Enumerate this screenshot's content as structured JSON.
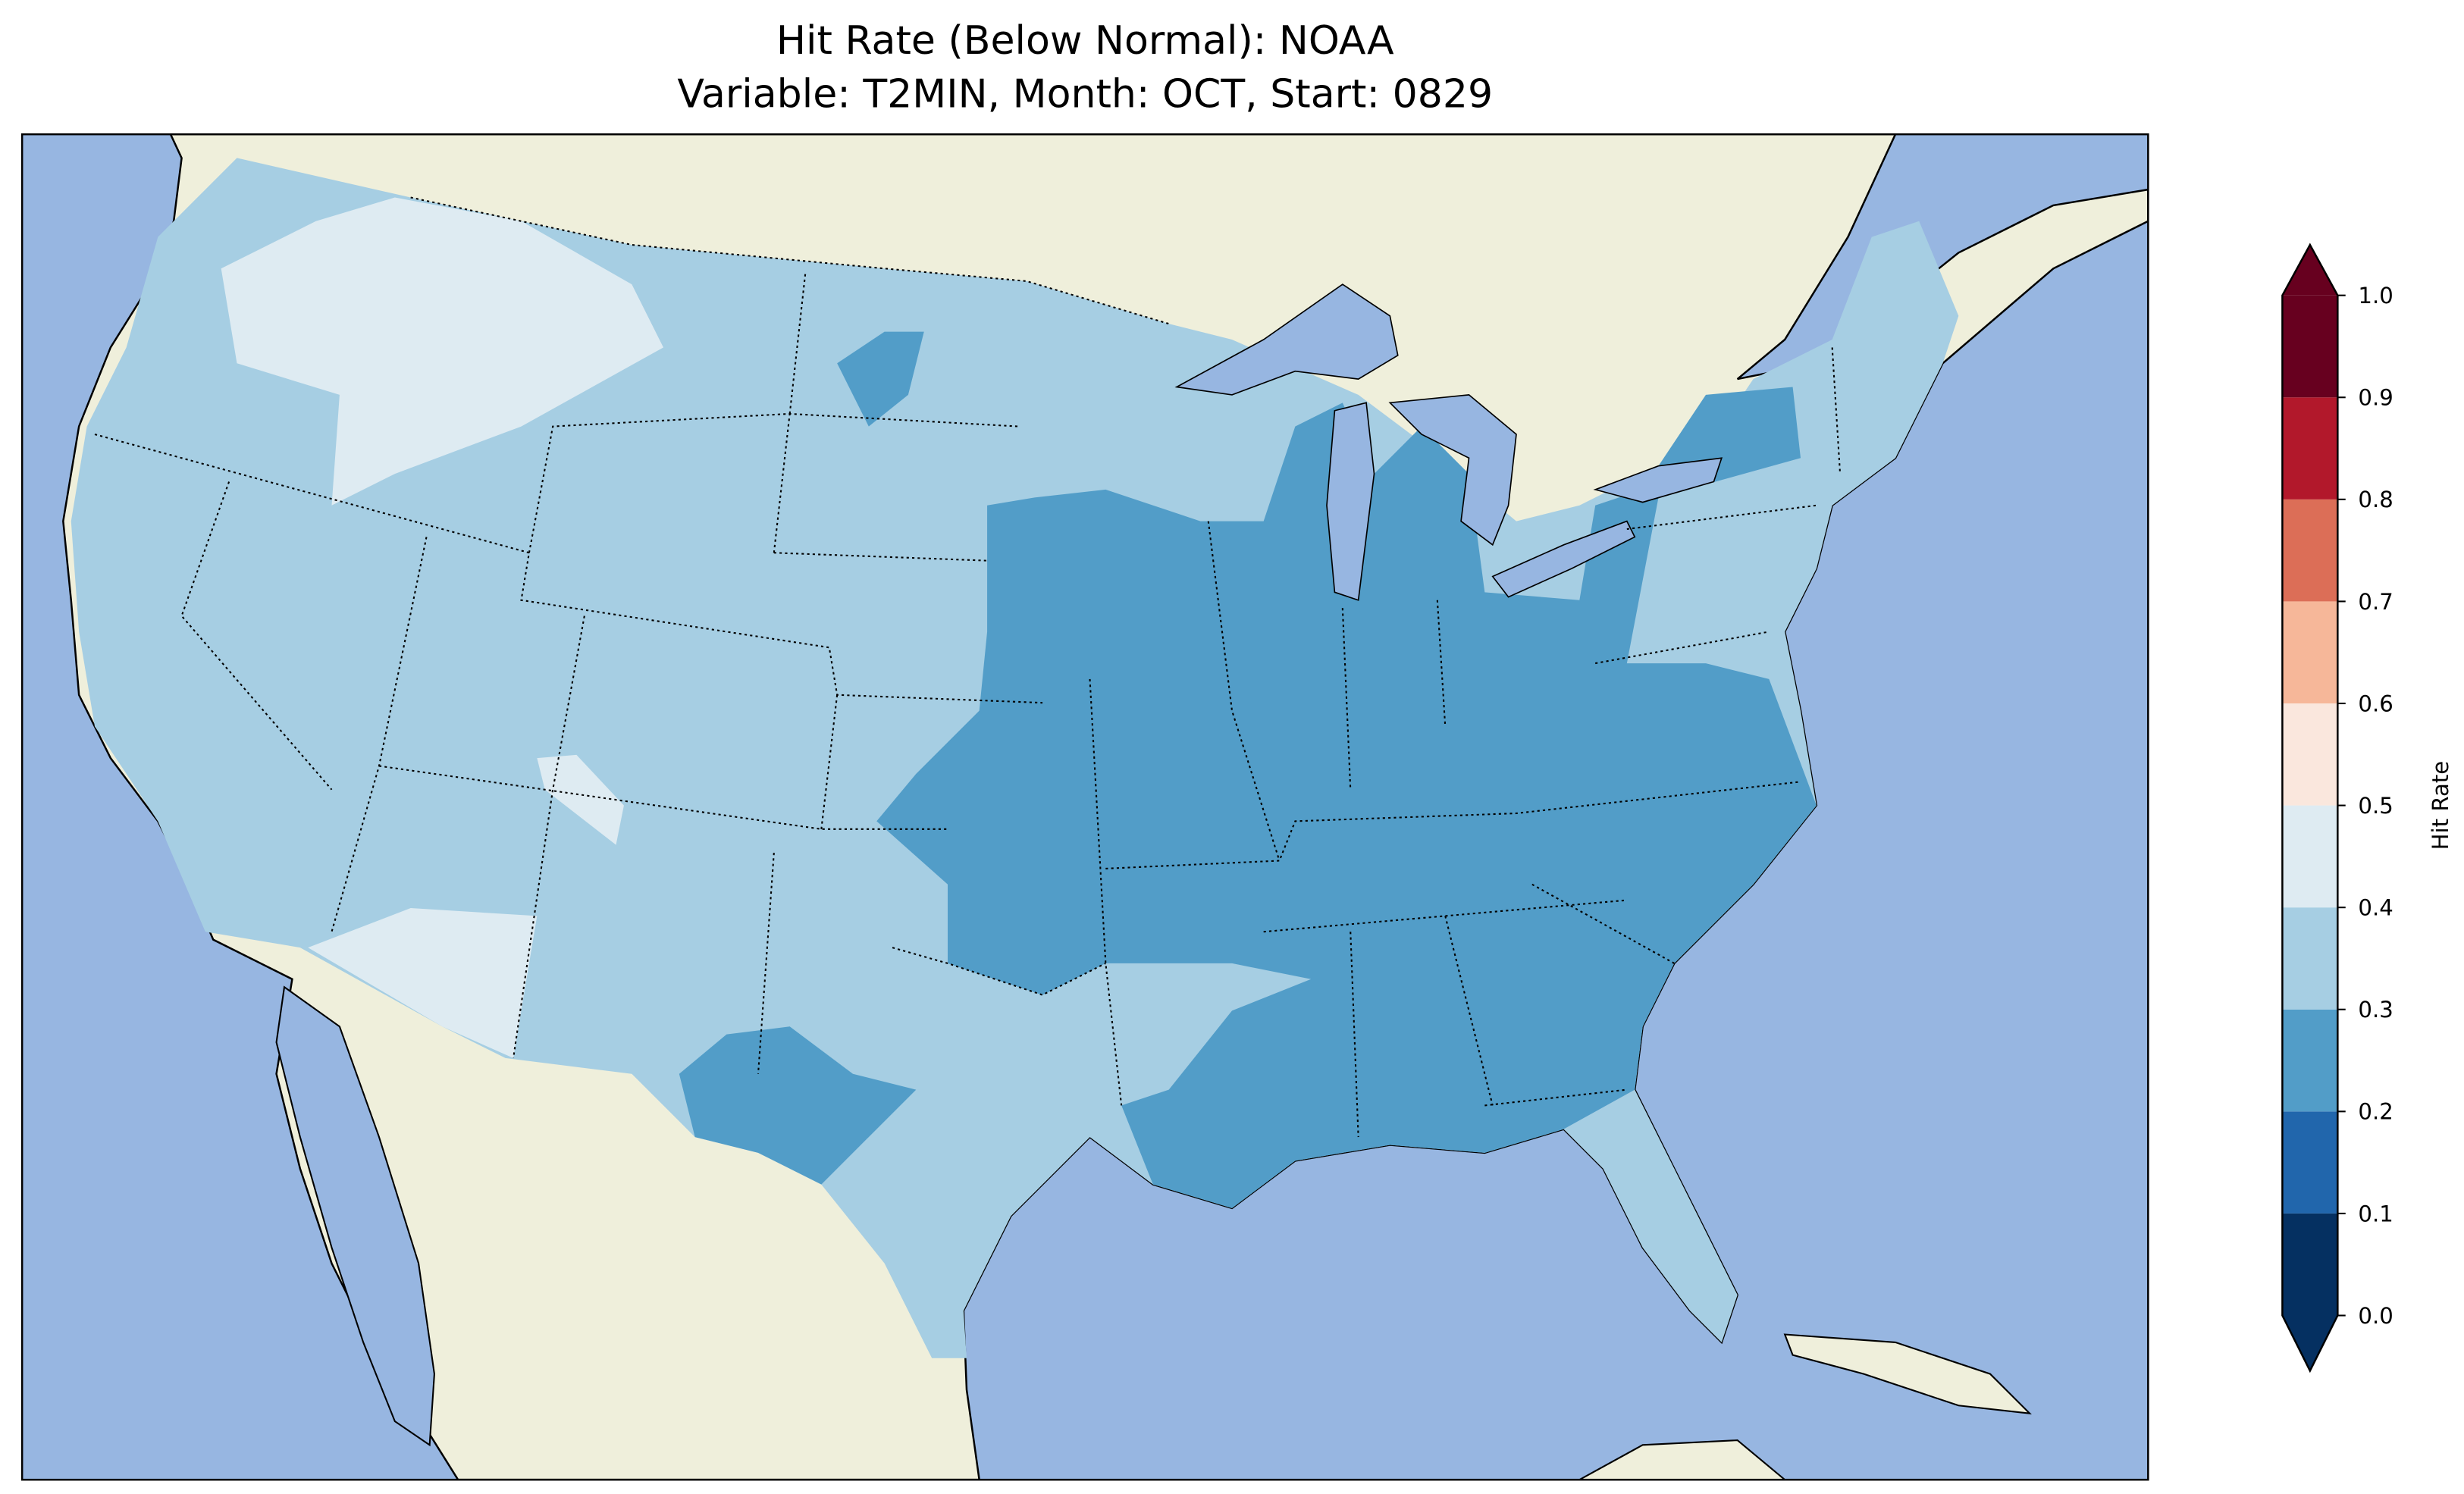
{
  "title": {
    "line1": "Hit Rate (Below Normal): NOAA",
    "line2": "Variable: T2MIN, Month: OCT, Start: 0829"
  },
  "colorbar": {
    "label": "Hit Rate",
    "ticks": [
      "0.0",
      "0.1",
      "0.2",
      "0.3",
      "0.4",
      "0.5",
      "0.6",
      "0.7",
      "0.8",
      "0.9",
      "1.0"
    ],
    "bins": [
      {
        "range": [
          0.0,
          0.1
        ],
        "color": "#053061"
      },
      {
        "range": [
          0.1,
          0.2
        ],
        "color": "#2166ac"
      },
      {
        "range": [
          0.2,
          0.3
        ],
        "color": "#529dc8"
      },
      {
        "range": [
          0.3,
          0.4
        ],
        "color": "#a6cee3"
      },
      {
        "range": [
          0.4,
          0.5
        ],
        "color": "#deebf2"
      },
      {
        "range": [
          0.5,
          0.6
        ],
        "color": "#fae7dd"
      },
      {
        "range": [
          0.6,
          0.7
        ],
        "color": "#f6b799"
      },
      {
        "range": [
          0.7,
          0.8
        ],
        "color": "#dc6e57"
      },
      {
        "range": [
          0.8,
          0.9
        ],
        "color": "#b2182b"
      },
      {
        "range": [
          0.9,
          1.0
        ],
        "color": "#67001f"
      }
    ],
    "extend": "both"
  },
  "map": {
    "ocean_color": "#97b6e1",
    "land_color": "#efefdb",
    "regions": [
      {
        "name": "central-east",
        "hit_rate_bin": "0.2-0.3"
      },
      {
        "name": "west-plains",
        "hit_rate_bin": "0.3-0.4"
      },
      {
        "name": "northwest-interior",
        "hit_rate_bin": "0.4-0.5"
      },
      {
        "name": "southwest-desert",
        "hit_rate_bin": "0.4-0.5"
      }
    ]
  }
}
